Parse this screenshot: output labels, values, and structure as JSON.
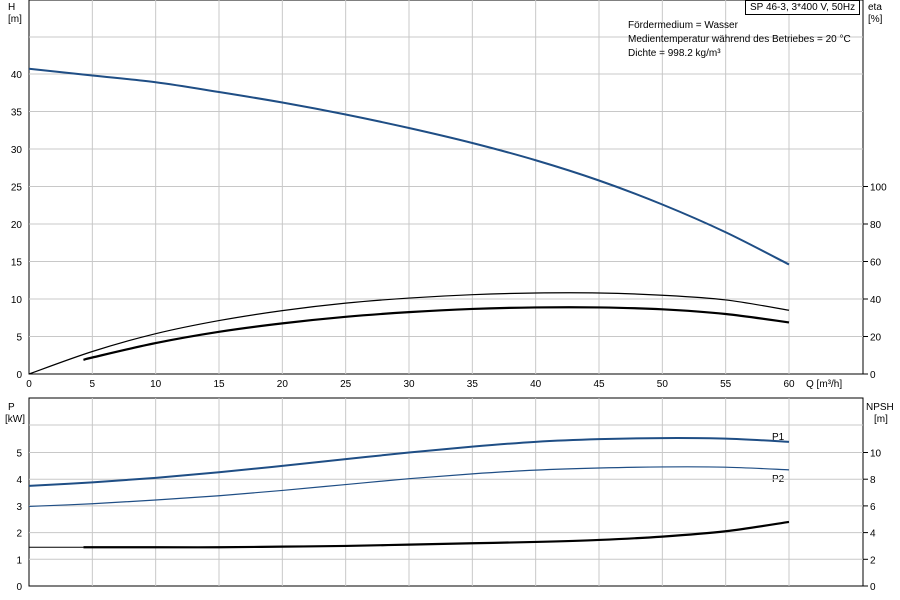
{
  "header": {
    "pump_info": "SP 46-3, 3*400 V, 50Hz"
  },
  "notes": [
    "Fördermedium = Wasser",
    "Medientemperatur während des Betriebes = 20 °C",
    "Dichte = 998.2 kg/m³"
  ],
  "colors": {
    "blue": "#1f4e85",
    "black": "#000000",
    "grid": "#c8c8c8"
  },
  "chart_data": [
    {
      "type": "line",
      "xlabel": "Q [m³/h]",
      "xlim": [
        0,
        60
      ],
      "x_ticks": [
        0,
        5,
        10,
        15,
        20,
        25,
        30,
        35,
        40,
        45,
        50,
        55,
        60
      ],
      "ylabel_left": [
        "H",
        "[m]"
      ],
      "ylim_left": [
        0,
        40
      ],
      "y_ticks_left": [
        0,
        5,
        10,
        15,
        20,
        25,
        30,
        35,
        40
      ],
      "ylabel_right": [
        "eta",
        "[%]"
      ],
      "ylim_right": [
        0,
        100
      ],
      "y_ticks_right": [
        0,
        20,
        40,
        60,
        80,
        100
      ],
      "grid": true,
      "series": [
        {
          "axis": "left",
          "color": "#1f4e85",
          "width": 2.0,
          "x": [
            0,
            5,
            10,
            15,
            20,
            25,
            30,
            35,
            40,
            45,
            50,
            55,
            60
          ],
          "y": [
            40.7,
            39.8,
            38.9,
            37.6,
            36.2,
            34.6,
            32.8,
            30.8,
            28.5,
            25.8,
            22.6,
            18.9,
            14.6
          ]
        },
        {
          "axis": "right",
          "color": "#000000",
          "width": 1.2,
          "x": [
            0,
            5,
            10,
            15,
            20,
            25,
            30,
            35,
            40,
            45,
            50,
            55,
            60
          ],
          "y": [
            0,
            12,
            21.5,
            28.5,
            33.8,
            37.8,
            40.5,
            42.3,
            43.2,
            43.2,
            42.0,
            39.5,
            34.0
          ]
        },
        {
          "axis": "right",
          "color": "#000000",
          "width": 2.2,
          "x": [
            4.3,
            5,
            10,
            15,
            20,
            25,
            30,
            35,
            40,
            45,
            50,
            55,
            60
          ],
          "y": [
            7.5,
            8.8,
            16.5,
            22.5,
            27.0,
            30.5,
            33.0,
            34.7,
            35.5,
            35.5,
            34.5,
            32.0,
            27.5
          ]
        }
      ]
    },
    {
      "type": "line",
      "xlim": [
        0,
        60
      ],
      "ylabel_left": [
        "P",
        "[kW]"
      ],
      "ylim_left": [
        0,
        6
      ],
      "y_ticks_left": [
        0,
        1,
        2,
        3,
        4,
        5
      ],
      "ylabel_right": [
        "NPSH",
        "[m]"
      ],
      "ylim_right": [
        0,
        12
      ],
      "y_ticks_right": [
        0,
        2,
        4,
        6,
        8,
        10
      ],
      "grid": true,
      "series": [
        {
          "name": "P1",
          "axis": "left",
          "color": "#1f4e85",
          "width": 2.0,
          "x": [
            0,
            5,
            10,
            15,
            20,
            25,
            30,
            35,
            40,
            45,
            50,
            55,
            60
          ],
          "y": [
            3.75,
            3.88,
            4.05,
            4.26,
            4.5,
            4.75,
            5.0,
            5.22,
            5.4,
            5.5,
            5.54,
            5.52,
            5.4
          ]
        },
        {
          "name": "P2",
          "axis": "left",
          "color": "#1f4e85",
          "width": 1.2,
          "x": [
            0,
            5,
            10,
            15,
            20,
            25,
            30,
            35,
            40,
            45,
            50,
            55,
            60
          ],
          "y": [
            2.98,
            3.08,
            3.22,
            3.38,
            3.58,
            3.8,
            4.02,
            4.2,
            4.34,
            4.42,
            4.46,
            4.45,
            4.35
          ]
        },
        {
          "axis": "right",
          "color": "#000000",
          "width": 1.0,
          "x": [
            0,
            4.3
          ],
          "y": [
            2.9,
            2.9
          ]
        },
        {
          "axis": "right",
          "color": "#000000",
          "width": 2.2,
          "x": [
            4.3,
            10,
            15,
            20,
            25,
            30,
            35,
            40,
            45,
            50,
            55,
            60
          ],
          "y": [
            2.9,
            2.9,
            2.9,
            2.95,
            3.0,
            3.1,
            3.2,
            3.3,
            3.45,
            3.7,
            4.1,
            4.8
          ]
        }
      ]
    }
  ]
}
